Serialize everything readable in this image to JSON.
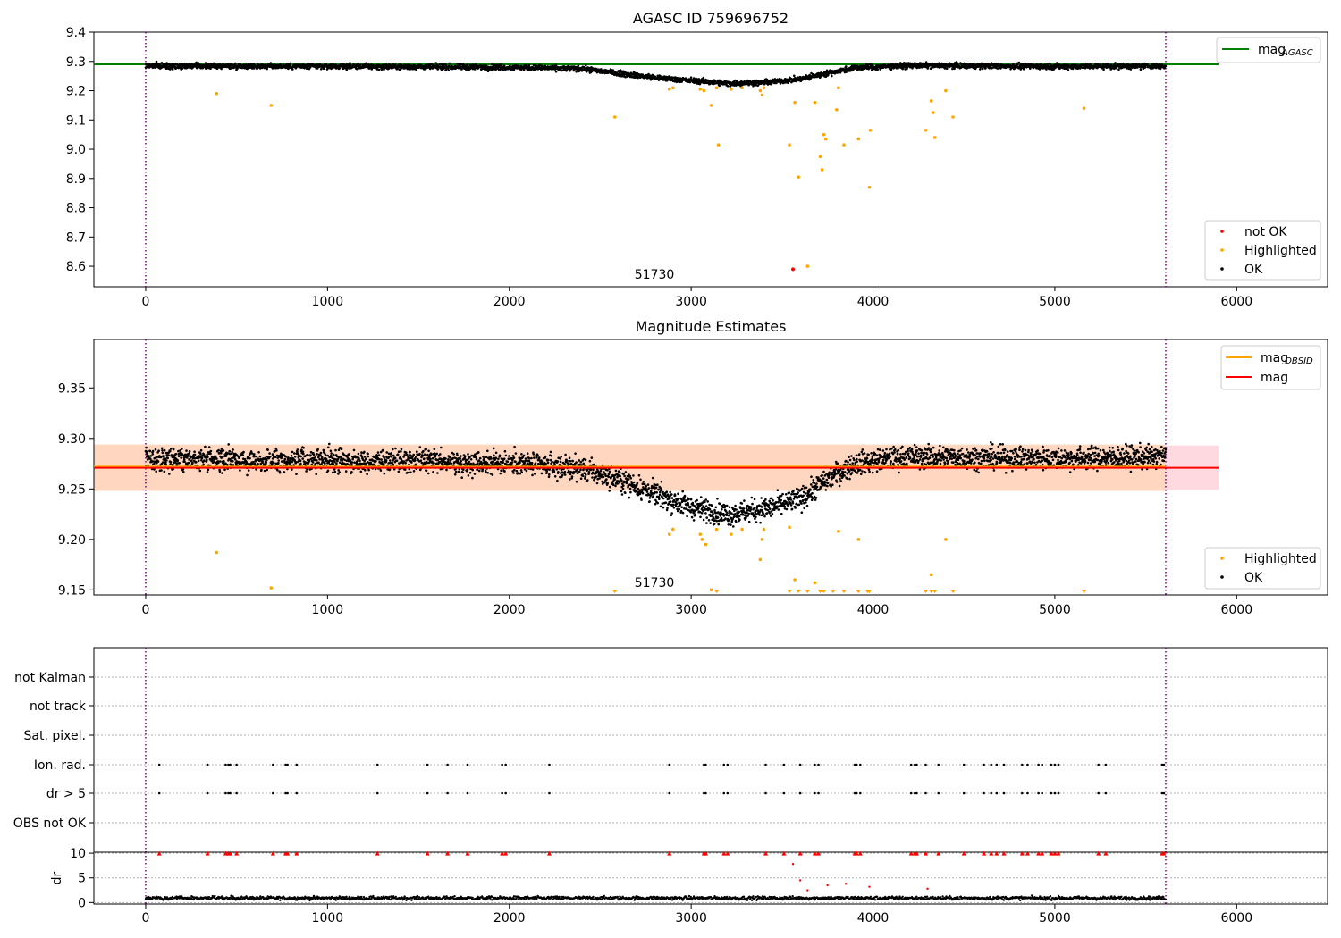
{
  "figure": {
    "background": "#ffffff"
  },
  "chart_data": [
    {
      "id": "agasc_panel",
      "type": "scatter",
      "title": "AGASC ID 759696752",
      "xlim": [
        -285,
        6500
      ],
      "ylim": [
        8.53,
        9.4
      ],
      "xticks": [
        0,
        1000,
        2000,
        3000,
        4000,
        5000,
        6000
      ],
      "yticks": [
        8.6,
        8.7,
        8.8,
        8.9,
        9.0,
        9.1,
        9.2,
        9.3,
        9.4
      ],
      "ytick_labels": [
        "8.6",
        "8.7",
        "8.8",
        "8.9",
        "9.0",
        "9.1",
        "9.2",
        "9.3",
        "9.4"
      ],
      "obsid_boundaries": [
        0,
        5610
      ],
      "obsid_label": {
        "text": "51730",
        "x": 2800,
        "y": 8.57
      },
      "mag_agasc": 9.29,
      "mag_agasc_range": [
        -285,
        5900
      ],
      "colors": {
        "ok": "#000000",
        "highlighted": "#ffa500",
        "not_ok": "#ff0000",
        "mag_agasc_line": "#008000",
        "boundary": "#800080"
      },
      "trend": [
        [
          0,
          9.285
        ],
        [
          1000,
          9.283
        ],
        [
          2000,
          9.28
        ],
        [
          2400,
          9.275
        ],
        [
          2600,
          9.26
        ],
        [
          2800,
          9.245
        ],
        [
          3000,
          9.235
        ],
        [
          3200,
          9.225
        ],
        [
          3400,
          9.228
        ],
        [
          3600,
          9.24
        ],
        [
          3750,
          9.26
        ],
        [
          3900,
          9.278
        ],
        [
          4200,
          9.286
        ],
        [
          5000,
          9.283
        ],
        [
          5610,
          9.284
        ]
      ],
      "highlighted": [
        [
          390,
          9.19
        ],
        [
          690,
          9.15
        ],
        [
          2580,
          9.11
        ],
        [
          2880,
          9.205
        ],
        [
          2900,
          9.21
        ],
        [
          3050,
          9.205
        ],
        [
          3070,
          9.2
        ],
        [
          3110,
          9.15
        ],
        [
          3140,
          9.21
        ],
        [
          3150,
          9.015
        ],
        [
          3220,
          9.205
        ],
        [
          3280,
          9.21
        ],
        [
          3380,
          9.2
        ],
        [
          3390,
          9.185
        ],
        [
          3400,
          9.21
        ],
        [
          3540,
          9.015
        ],
        [
          3570,
          9.16
        ],
        [
          3590,
          8.905
        ],
        [
          3640,
          8.6
        ],
        [
          3680,
          9.16
        ],
        [
          3710,
          8.975
        ],
        [
          3720,
          8.93
        ],
        [
          3730,
          9.05
        ],
        [
          3740,
          9.035
        ],
        [
          3800,
          9.135
        ],
        [
          3810,
          9.21
        ],
        [
          3840,
          9.015
        ],
        [
          3920,
          9.035
        ],
        [
          3980,
          8.87
        ],
        [
          3985,
          9.065
        ],
        [
          4290,
          9.065
        ],
        [
          4320,
          9.165
        ],
        [
          4330,
          9.125
        ],
        [
          4340,
          9.04
        ],
        [
          4400,
          9.2
        ],
        [
          4440,
          9.11
        ],
        [
          5160,
          9.14
        ]
      ],
      "not_ok": [
        [
          3560,
          8.59
        ]
      ],
      "legend": [
        {
          "label": "mag",
          "sub": "AGASC",
          "kind": "line",
          "color": "#008000"
        },
        {
          "label": "not OK",
          "kind": "dot",
          "color": "#ff0000"
        },
        {
          "label": "Highlighted",
          "kind": "dot",
          "color": "#ffa500"
        },
        {
          "label": "OK",
          "kind": "dot",
          "color": "#000000"
        }
      ]
    },
    {
      "id": "magnitude_panel",
      "type": "scatter",
      "title": "Magnitude Estimates",
      "xlim": [
        -285,
        6500
      ],
      "ylim": [
        9.145,
        9.398
      ],
      "xticks": [
        0,
        1000,
        2000,
        3000,
        4000,
        5000,
        6000
      ],
      "yticks": [
        9.15,
        9.2,
        9.25,
        9.3,
        9.35
      ],
      "ytick_labels": [
        "9.15",
        "9.20",
        "9.25",
        "9.30",
        "9.35"
      ],
      "obsid_boundaries": [
        0,
        5610
      ],
      "obsid_label": {
        "text": "51730",
        "x": 2800,
        "y": 9.152
      },
      "mag": 9.271,
      "mag_band": [
        9.249,
        9.293
      ],
      "mag_obsid": 9.272,
      "mag_obsid_band": [
        9.248,
        9.294
      ],
      "line_range": [
        -285,
        5900
      ],
      "colors": {
        "ok": "#000000",
        "highlighted": "#ffa500",
        "mag_line": "#ff0000",
        "mag_obsid_line": "#ffa500",
        "mag_band": "#ffc0cb",
        "mag_obsid_band": "#ffd5b8"
      },
      "trend": [
        [
          0,
          9.28
        ],
        [
          1000,
          9.278
        ],
        [
          2000,
          9.276
        ],
        [
          2400,
          9.27
        ],
        [
          2600,
          9.26
        ],
        [
          2800,
          9.245
        ],
        [
          3000,
          9.232
        ],
        [
          3200,
          9.225
        ],
        [
          3400,
          9.23
        ],
        [
          3600,
          9.24
        ],
        [
          3750,
          9.26
        ],
        [
          3900,
          9.275
        ],
        [
          4200,
          9.282
        ],
        [
          5000,
          9.28
        ],
        [
          5610,
          9.282
        ]
      ],
      "highlighted": [
        [
          390,
          9.187
        ],
        [
          690,
          9.152
        ],
        [
          2880,
          9.205
        ],
        [
          2900,
          9.21
        ],
        [
          3050,
          9.205
        ],
        [
          3060,
          9.2
        ],
        [
          3080,
          9.195
        ],
        [
          3110,
          9.15
        ],
        [
          3140,
          9.21
        ],
        [
          3220,
          9.205
        ],
        [
          3280,
          9.21
        ],
        [
          3380,
          9.18
        ],
        [
          3390,
          9.2
        ],
        [
          3400,
          9.21
        ],
        [
          3540,
          9.212
        ],
        [
          3570,
          9.16
        ],
        [
          3680,
          9.157
        ],
        [
          3810,
          9.208
        ],
        [
          3920,
          9.2
        ],
        [
          4320,
          9.165
        ],
        [
          4400,
          9.2
        ]
      ],
      "censored": [
        2580,
        3140,
        3540,
        3590,
        3640,
        3710,
        3720,
        3730,
        3780,
        3840,
        3920,
        3970,
        3980,
        4290,
        4320,
        4340,
        4440,
        5160
      ],
      "legend": [
        {
          "label": "mag",
          "sub": "OBSID",
          "kind": "line",
          "color": "#ffa500"
        },
        {
          "label": "mag",
          "kind": "line",
          "color": "#ff0000"
        }
      ],
      "legend2": [
        {
          "label": "Highlighted",
          "kind": "dot",
          "color": "#ffa500"
        },
        {
          "label": "OK",
          "kind": "dot",
          "color": "#000000"
        }
      ]
    },
    {
      "id": "flags_panel",
      "type": "scatter",
      "xlim": [
        -285,
        6500
      ],
      "categories": [
        "not Kalman",
        "not track",
        "Sat. pixel.",
        "Ion. rad.",
        "dr > 5",
        "OBS not OK"
      ],
      "obsid_boundaries": [
        0,
        5610
      ],
      "flag_events": [
        75,
        340,
        440,
        455,
        465,
        500,
        700,
        770,
        780,
        830,
        1275,
        1550,
        1660,
        1770,
        1960,
        1980,
        2220,
        2880,
        3070,
        3080,
        3180,
        3200,
        3410,
        3510,
        3600,
        3680,
        3700,
        3900,
        3910,
        3930,
        4210,
        4230,
        4240,
        4290,
        4360,
        4500,
        4610,
        4650,
        4680,
        4720,
        4820,
        4850,
        4910,
        4930,
        4980,
        5000,
        5020,
        5240,
        5280,
        5590,
        5600
      ],
      "flag_rows": [
        "Ion. rad.",
        "dr > 5"
      ]
    },
    {
      "id": "dr_panel",
      "type": "scatter",
      "ylabel": "dr",
      "xlim": [
        -285,
        6500
      ],
      "ylim": [
        -0.3,
        10.2
      ],
      "xticks": [
        0,
        1000,
        2000,
        3000,
        4000,
        5000,
        6000
      ],
      "yticks": [
        0,
        5,
        10
      ],
      "ytick_labels": [
        "0",
        "5",
        "10"
      ],
      "obsid_boundaries": [
        0,
        5610
      ],
      "dr_baseline": 0.9,
      "high_dr": [
        [
          3560,
          7.8
        ],
        [
          3600,
          4.5
        ],
        [
          3640,
          2.5
        ],
        [
          3750,
          3.5
        ],
        [
          3850,
          3.8
        ],
        [
          3980,
          3.2
        ],
        [
          4300,
          2.8
        ]
      ],
      "clipped_value": 10,
      "colors": {
        "ok": "#000000",
        "clipped": "#ff0000"
      }
    }
  ]
}
